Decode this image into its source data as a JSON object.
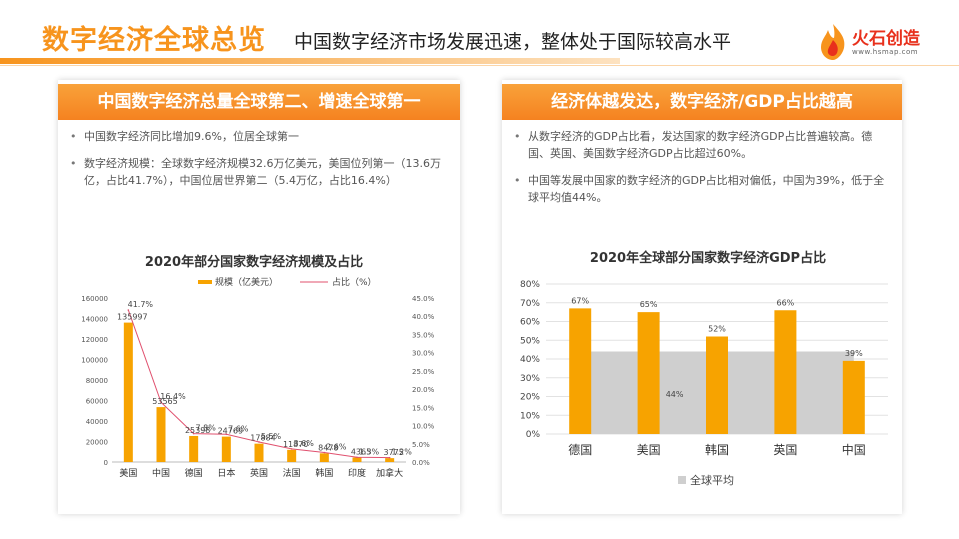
{
  "header": {
    "title": "数字经济全球总览",
    "subtitle": "中国数字经济市场发展迅速，整体处于国际较高水平",
    "logo_text": "火石创造",
    "logo_url": "www.hsmap.com"
  },
  "left_panel": {
    "heading": "中国数字经济总量全球第二、增速全球第一",
    "bullets": [
      "中国数字经济同比增加9.6%，位居全球第一",
      "数字经济规模：全球数字经济规模32.6万亿美元，美国位列第一（13.6万亿，占比41.7%），中国位居世界第二（5.4万亿，占比16.4%）"
    ]
  },
  "right_panel": {
    "heading": "经济体越发达，数字经济/GDP占比越高",
    "bullets": [
      "从数字经济的GDP占比看，发达国家的数字经济GDP占比普遍较高。德国、英国、美国数字经济GDP占比超过60%。",
      "中国等发展中国家的数字经济的GDP占比相对偏低，中国为39%，低于全球平均值44%。"
    ]
  },
  "colors": {
    "accent": "#f7941d",
    "bar": "#f7a300",
    "line": "#e0506e",
    "avg": "#cfcfcf"
  },
  "chart_data": [
    {
      "type": "bar",
      "title": "2020年部分国家数字经济规模及占比",
      "categories": [
        "美国",
        "中国",
        "德国",
        "日本",
        "英国",
        "法国",
        "韩国",
        "印度",
        "加拿大"
      ],
      "series": [
        {
          "name": "规模（亿美元）",
          "type": "bar",
          "axis": "left",
          "values": [
            135997,
            53565,
            25398,
            24769,
            17884,
            11870,
            8478,
            4365,
            3775
          ],
          "labels": [
            "135997",
            "53565",
            "25398",
            "24769",
            "17884",
            "11870",
            "8478",
            "4365",
            "3775"
          ]
        },
        {
          "name": "占比（%）",
          "type": "line",
          "axis": "right",
          "values": [
            41.7,
            16.4,
            7.8,
            7.6,
            5.5,
            3.6,
            2.6,
            1.3,
            1.2
          ],
          "labels": [
            "41.7%",
            "16.4%",
            "7.8%",
            "7.6%",
            "5.5%",
            "3.6%",
            "2.6%",
            "1.3%",
            "1.2%"
          ]
        }
      ],
      "y_left": {
        "min": 0,
        "max": 160000,
        "ticks": [
          "0",
          "20000",
          "40000",
          "60000",
          "80000",
          "100000",
          "120000",
          "140000",
          "160000"
        ]
      },
      "y_right": {
        "min": 0,
        "max": 45,
        "ticks": [
          "0.0%",
          "5.0%",
          "10.0%",
          "15.0%",
          "20.0%",
          "25.0%",
          "30.0%",
          "35.0%",
          "40.0%",
          "45.0%"
        ]
      },
      "legend_position": "top"
    },
    {
      "type": "bar",
      "title": "2020年全球部分国家数字经济GDP占比",
      "categories": [
        "德国",
        "美国",
        "韩国",
        "英国",
        "中国"
      ],
      "series": [
        {
          "name": "占比",
          "values": [
            67,
            65,
            52,
            66,
            39
          ],
          "labels": [
            "67%",
            "65%",
            "52%",
            "66%",
            "39%"
          ]
        }
      ],
      "average": {
        "name": "全球平均",
        "value": 44,
        "label": "44%"
      },
      "y": {
        "min": 0,
        "max": 80,
        "ticks": [
          "0%",
          "10%",
          "20%",
          "30%",
          "40%",
          "50%",
          "60%",
          "70%",
          "80%"
        ]
      },
      "grid": true,
      "legend_position": "bottom"
    }
  ]
}
